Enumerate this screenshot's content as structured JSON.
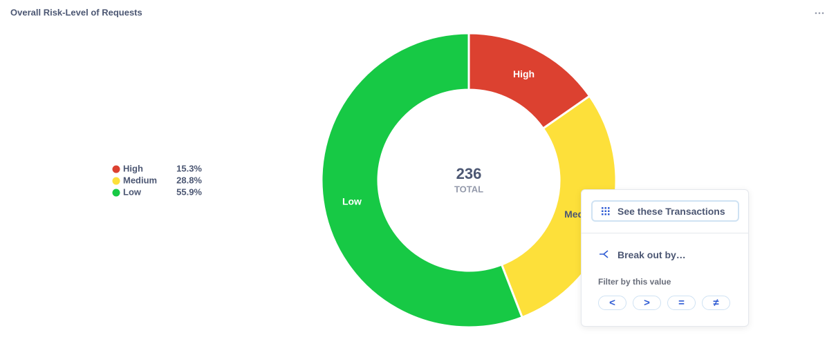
{
  "chart_data": {
    "type": "pie",
    "title": "Overall Risk-Level of Requests",
    "categories": [
      "High",
      "Medium",
      "Low"
    ],
    "values": [
      15.3,
      28.8,
      55.9
    ],
    "value_labels": [
      "15.3%",
      "28.8%",
      "55.9%"
    ],
    "colors": [
      "#dc4130",
      "#fde03a",
      "#17c945"
    ],
    "total": 236,
    "total_label": "TOTAL"
  },
  "popover": {
    "primary_action": "See these Transactions",
    "breakout": "Break out by…",
    "filter_heading": "Filter by this value",
    "filters": [
      "<",
      ">",
      "=",
      "≠"
    ]
  }
}
